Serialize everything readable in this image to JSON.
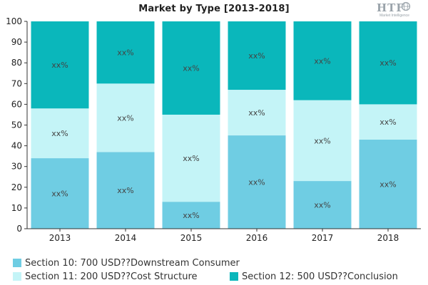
{
  "chart_data": {
    "type": "bar",
    "stacked": true,
    "title": "Market by Type [2013-2018]",
    "categories": [
      "2013",
      "2014",
      "2015",
      "2016",
      "2017",
      "2018"
    ],
    "ylim": [
      0,
      100
    ],
    "yticks": [
      0,
      10,
      20,
      30,
      40,
      50,
      60,
      70,
      80,
      90,
      100
    ],
    "grid": false,
    "legend_position": "bottom",
    "series": [
      {
        "name": "Section 10: 700 USD??Downstream Consumer",
        "color": "#6fcde3",
        "values": [
          34,
          37,
          13,
          45,
          23,
          43
        ],
        "data_labels": [
          "xx%",
          "xx%",
          "xx%",
          "xx%",
          "xx%",
          "xx%"
        ]
      },
      {
        "name": "Section 11: 200 USD??Cost Structure",
        "color": "#c4f4f7",
        "values": [
          24,
          33,
          42,
          22,
          39,
          17
        ],
        "data_labels": [
          "xx%",
          "xx%",
          "xx%",
          "xx%",
          "xx%",
          "xx%"
        ]
      },
      {
        "name": "Section 12: 500 USD??Conclusion",
        "color": "#0ab7bb",
        "values": [
          42,
          30,
          45,
          33,
          38,
          40
        ],
        "data_labels": [
          "xx%",
          "xx%",
          "xx%",
          "xx%",
          "xx%",
          "xx%"
        ]
      }
    ]
  },
  "logo": {
    "mark": "HTF",
    "sub": "Market Intelligence",
    "icon": "globe-icon"
  }
}
